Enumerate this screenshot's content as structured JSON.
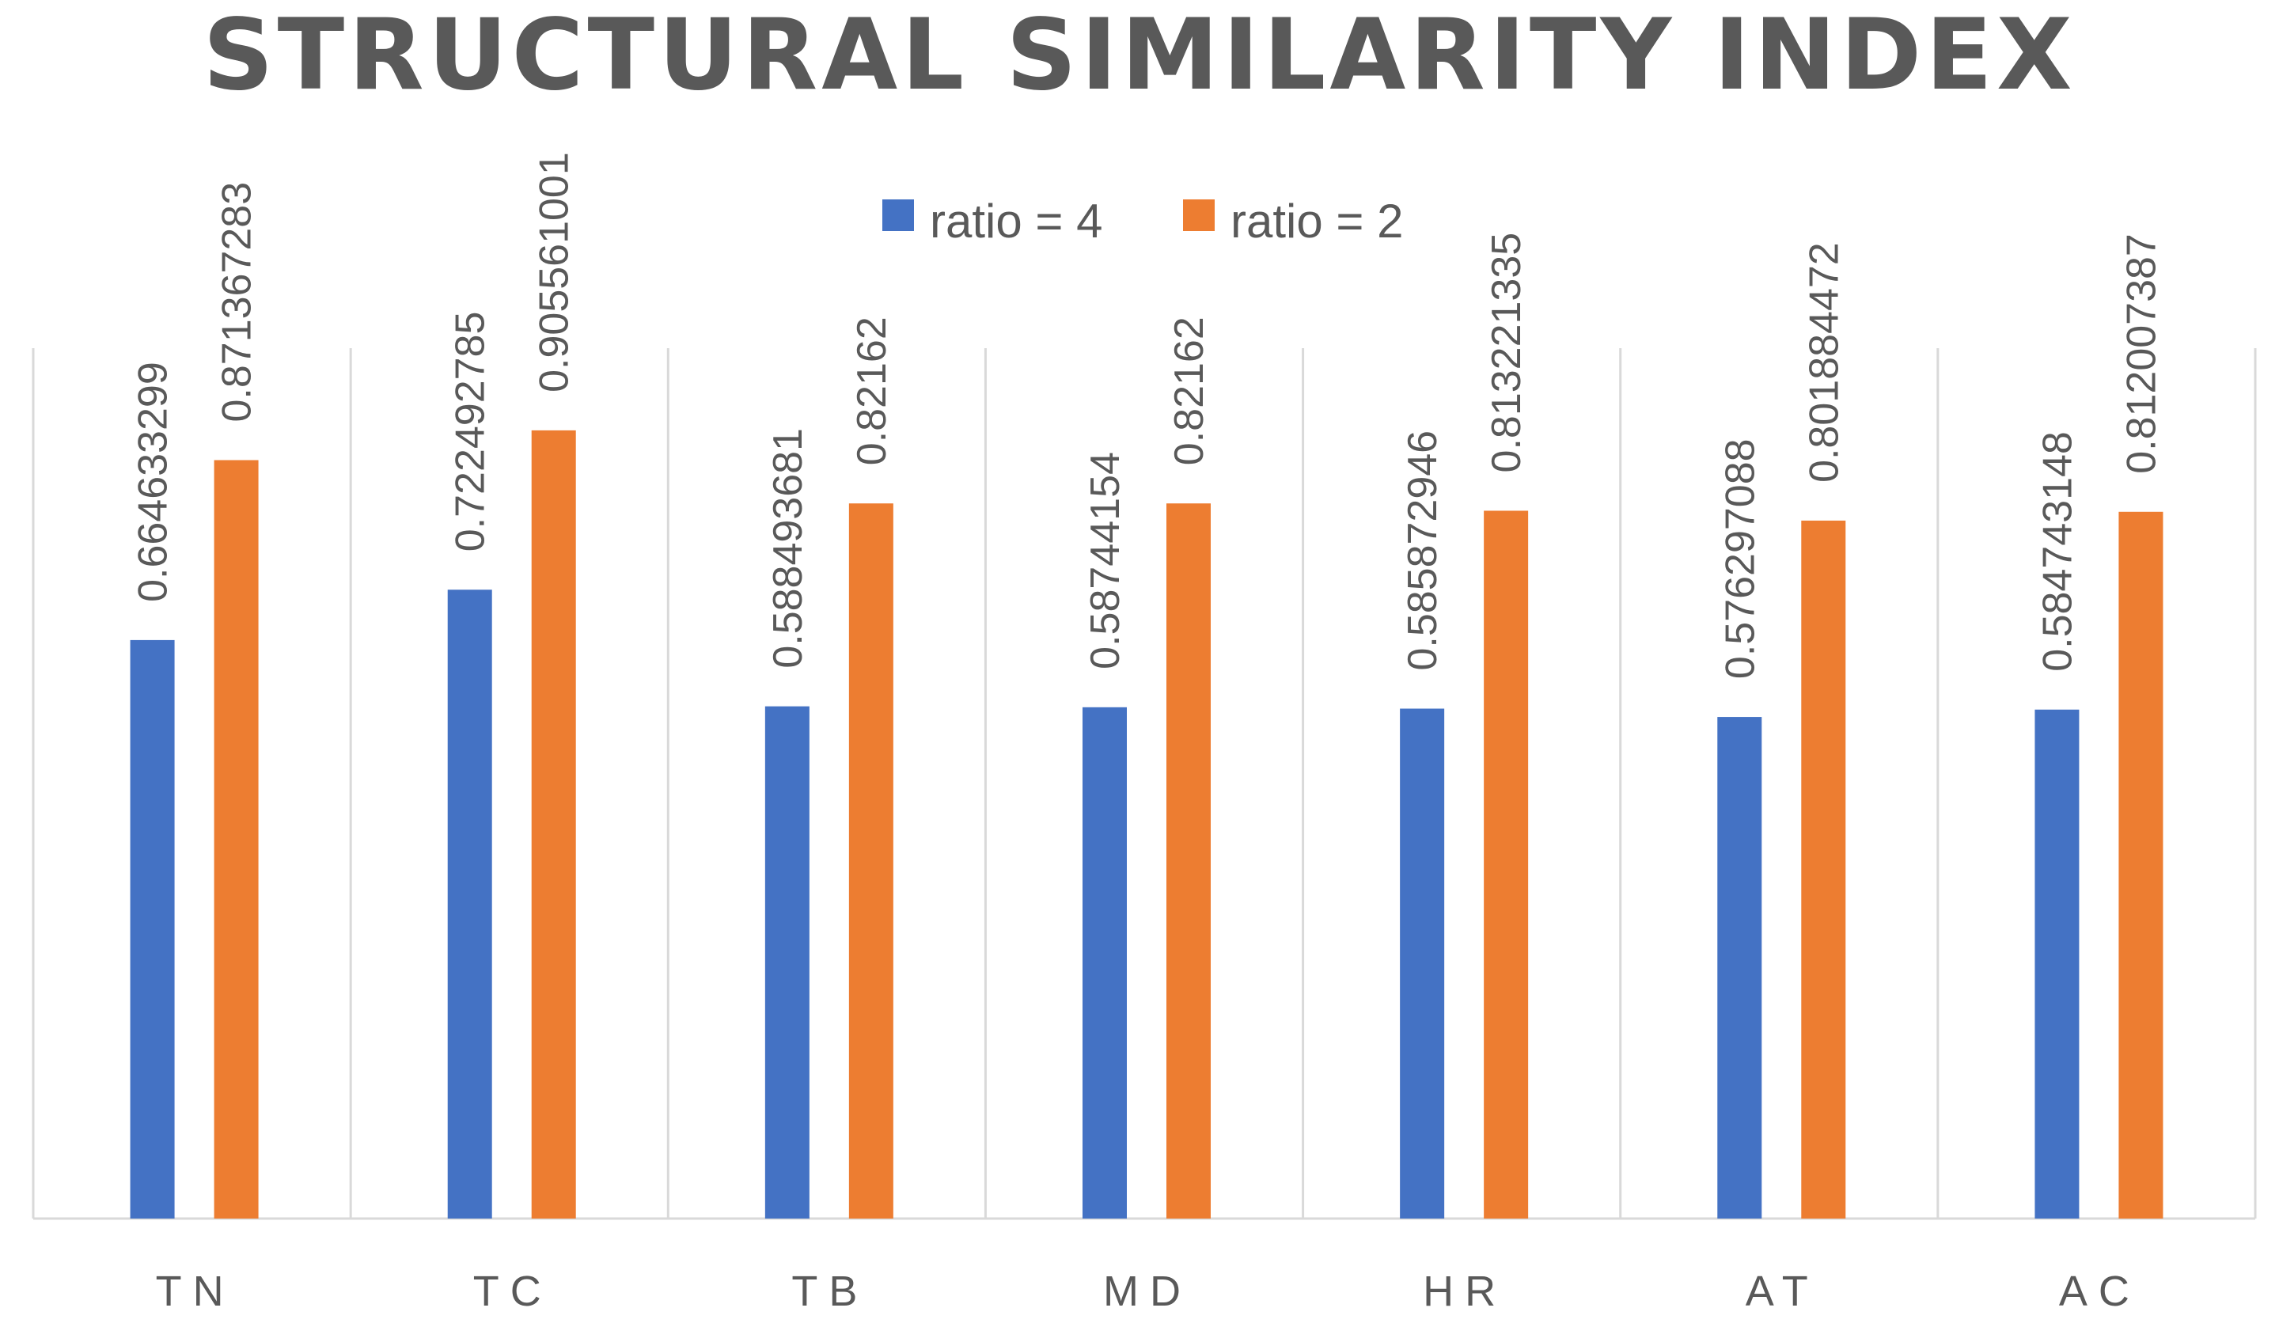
{
  "chart_data": {
    "type": "bar",
    "title": "STRUCTURAL SIMILARITY INDEX",
    "xlabel": "",
    "ylabel": "",
    "ylim": [
      0,
      1.0
    ],
    "grid": false,
    "legend_position": "top-center",
    "categories": [
      "TN",
      "TC",
      "TB",
      "MD",
      "HR",
      "AT",
      "AC"
    ],
    "series": [
      {
        "name": "ratio = 4",
        "color": "#4472C4",
        "values": [
          0.664633299,
          0.722492785,
          0.588493681,
          0.58744154,
          0.585872946,
          0.576297088,
          0.584743148
        ],
        "labels": [
          "0.664633299",
          "0.722492785",
          "0.588493681",
          "0.58744154",
          "0.585872946",
          "0.576297088",
          "0.584743148"
        ]
      },
      {
        "name": "ratio = 2",
        "color": "#ED7D31",
        "values": [
          0.871367283,
          0.905561001,
          0.82162,
          0.82162,
          0.813221335,
          0.801884472,
          0.812007387
        ],
        "labels": [
          "0.871367283",
          "0.905561001",
          "0.82162",
          "0.82162",
          "0.813221335",
          "0.801884472",
          "0.812007387"
        ]
      }
    ],
    "colors": {
      "title": "#595959",
      "text": "#595959",
      "separator": "#d9d9d9",
      "axis": "#d9d9d9"
    }
  }
}
